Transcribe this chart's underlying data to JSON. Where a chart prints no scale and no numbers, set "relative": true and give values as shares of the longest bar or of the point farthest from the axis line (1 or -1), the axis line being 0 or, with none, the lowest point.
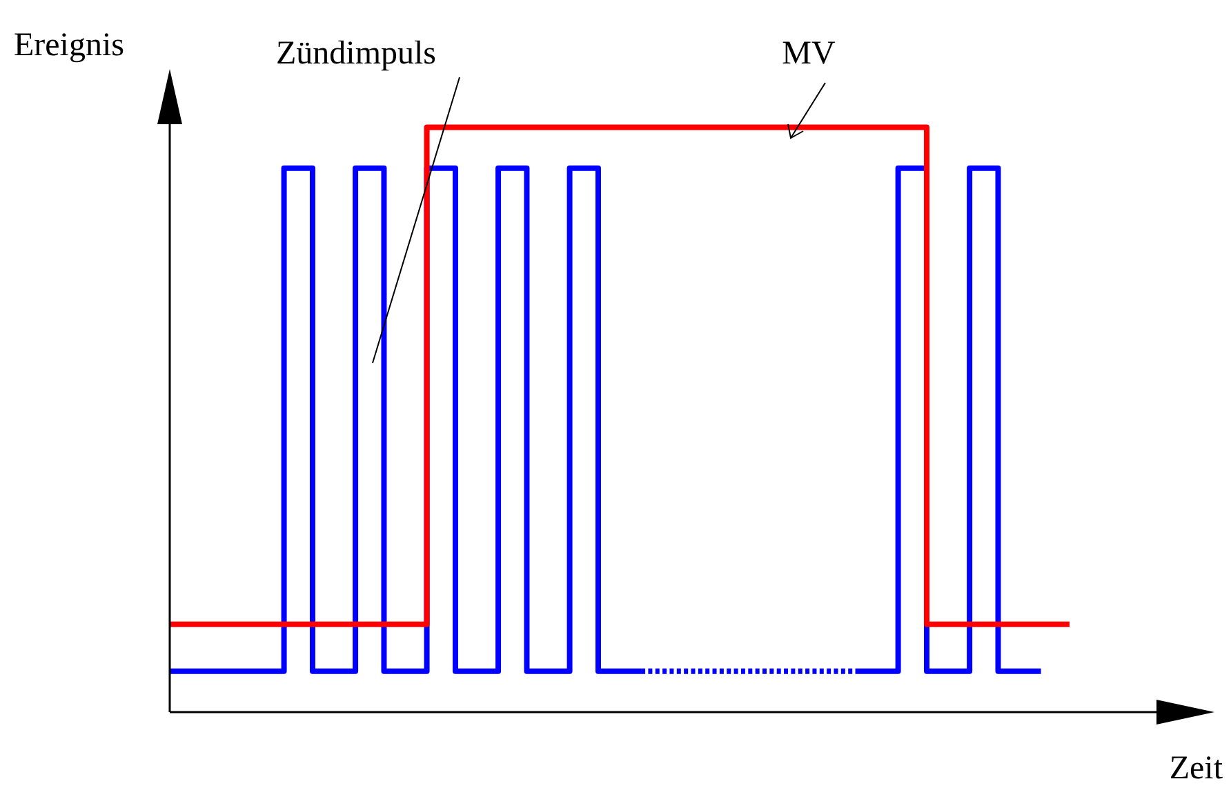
{
  "chart_data": {
    "type": "step",
    "relative": true,
    "xlabel": "Zeit",
    "ylabel": "Ereignis",
    "categories": [
      null,
      null,
      null,
      null,
      null,
      null,
      null,
      null,
      null,
      null,
      null,
      null,
      null,
      null,
      null,
      null,
      null,
      null,
      null,
      null,
      null,
      null,
      null,
      null,
      null,
      null,
      null,
      null,
      null,
      null,
      null,
      null,
      null,
      null,
      null,
      null,
      null,
      null,
      null,
      null,
      null,
      null,
      null,
      null,
      null,
      null,
      null,
      null,
      null,
      null,
      null,
      null,
      null,
      null,
      null,
      null,
      null,
      null,
      null,
      null,
      null,
      null,
      null,
      null
    ],
    "series": [
      {
        "name": "Zündimpuls",
        "color": "#0000ff",
        "line_style": "solid",
        "values": [
          0.07,
          0.07,
          0.07,
          0.07,
          0.07,
          0.07,
          0.07,
          0.07,
          0.93,
          0.93,
          0.07,
          0.07,
          0.07,
          0.93,
          0.93,
          0.07,
          0.07,
          0.07,
          0.93,
          0.93,
          0.07,
          0.07,
          0.07,
          0.93,
          0.93,
          0.07,
          0.07,
          0.07,
          0.93,
          0.93,
          0.07,
          0.07,
          0.07,
          0.07,
          null,
          null,
          null,
          null,
          null,
          null,
          null,
          null,
          null,
          null,
          null,
          null,
          null,
          null,
          0.07,
          0.07,
          0.07,
          0.93,
          0.93,
          0.07,
          0.07,
          0.07,
          0.93,
          0.93,
          0.07,
          0.07,
          0.07,
          0.07,
          null,
          null
        ]
      },
      {
        "color": "#0000fe",
        "line_style": "dotted",
        "values": [
          null,
          null,
          null,
          null,
          null,
          null,
          null,
          null,
          null,
          null,
          null,
          null,
          null,
          null,
          null,
          null,
          null,
          null,
          null,
          null,
          null,
          null,
          null,
          null,
          null,
          null,
          null,
          null,
          null,
          null,
          null,
          null,
          null,
          0.07,
          0.07,
          0.07,
          0.07,
          0.07,
          0.07,
          0.07,
          0.07,
          0.07,
          0.07,
          0.07,
          0.07,
          0.07,
          0.07,
          0.07,
          0.07,
          null,
          null,
          null,
          null,
          null,
          null,
          null,
          null,
          null,
          null,
          null,
          null,
          null,
          null,
          null
        ]
      },
      {
        "name": "MV",
        "color": "#ff0000",
        "line_style": "solid",
        "values": [
          0.15,
          0.15,
          0.15,
          0.15,
          0.15,
          0.15,
          0.15,
          0.15,
          0.15,
          0.15,
          0.15,
          0.15,
          0.15,
          0.15,
          0.15,
          0.15,
          0.15,
          0.15,
          1,
          1,
          1,
          1,
          1,
          1,
          1,
          1,
          1,
          1,
          1,
          1,
          1,
          1,
          1,
          1,
          1,
          1,
          1,
          1,
          1,
          1,
          1,
          1,
          1,
          1,
          1,
          1,
          1,
          1,
          1,
          1,
          1,
          1,
          1,
          0.15,
          0.15,
          0.15,
          0.15,
          0.15,
          0.15,
          0.15,
          0.15,
          0.15,
          0.15,
          0.15
        ]
      }
    ]
  }
}
